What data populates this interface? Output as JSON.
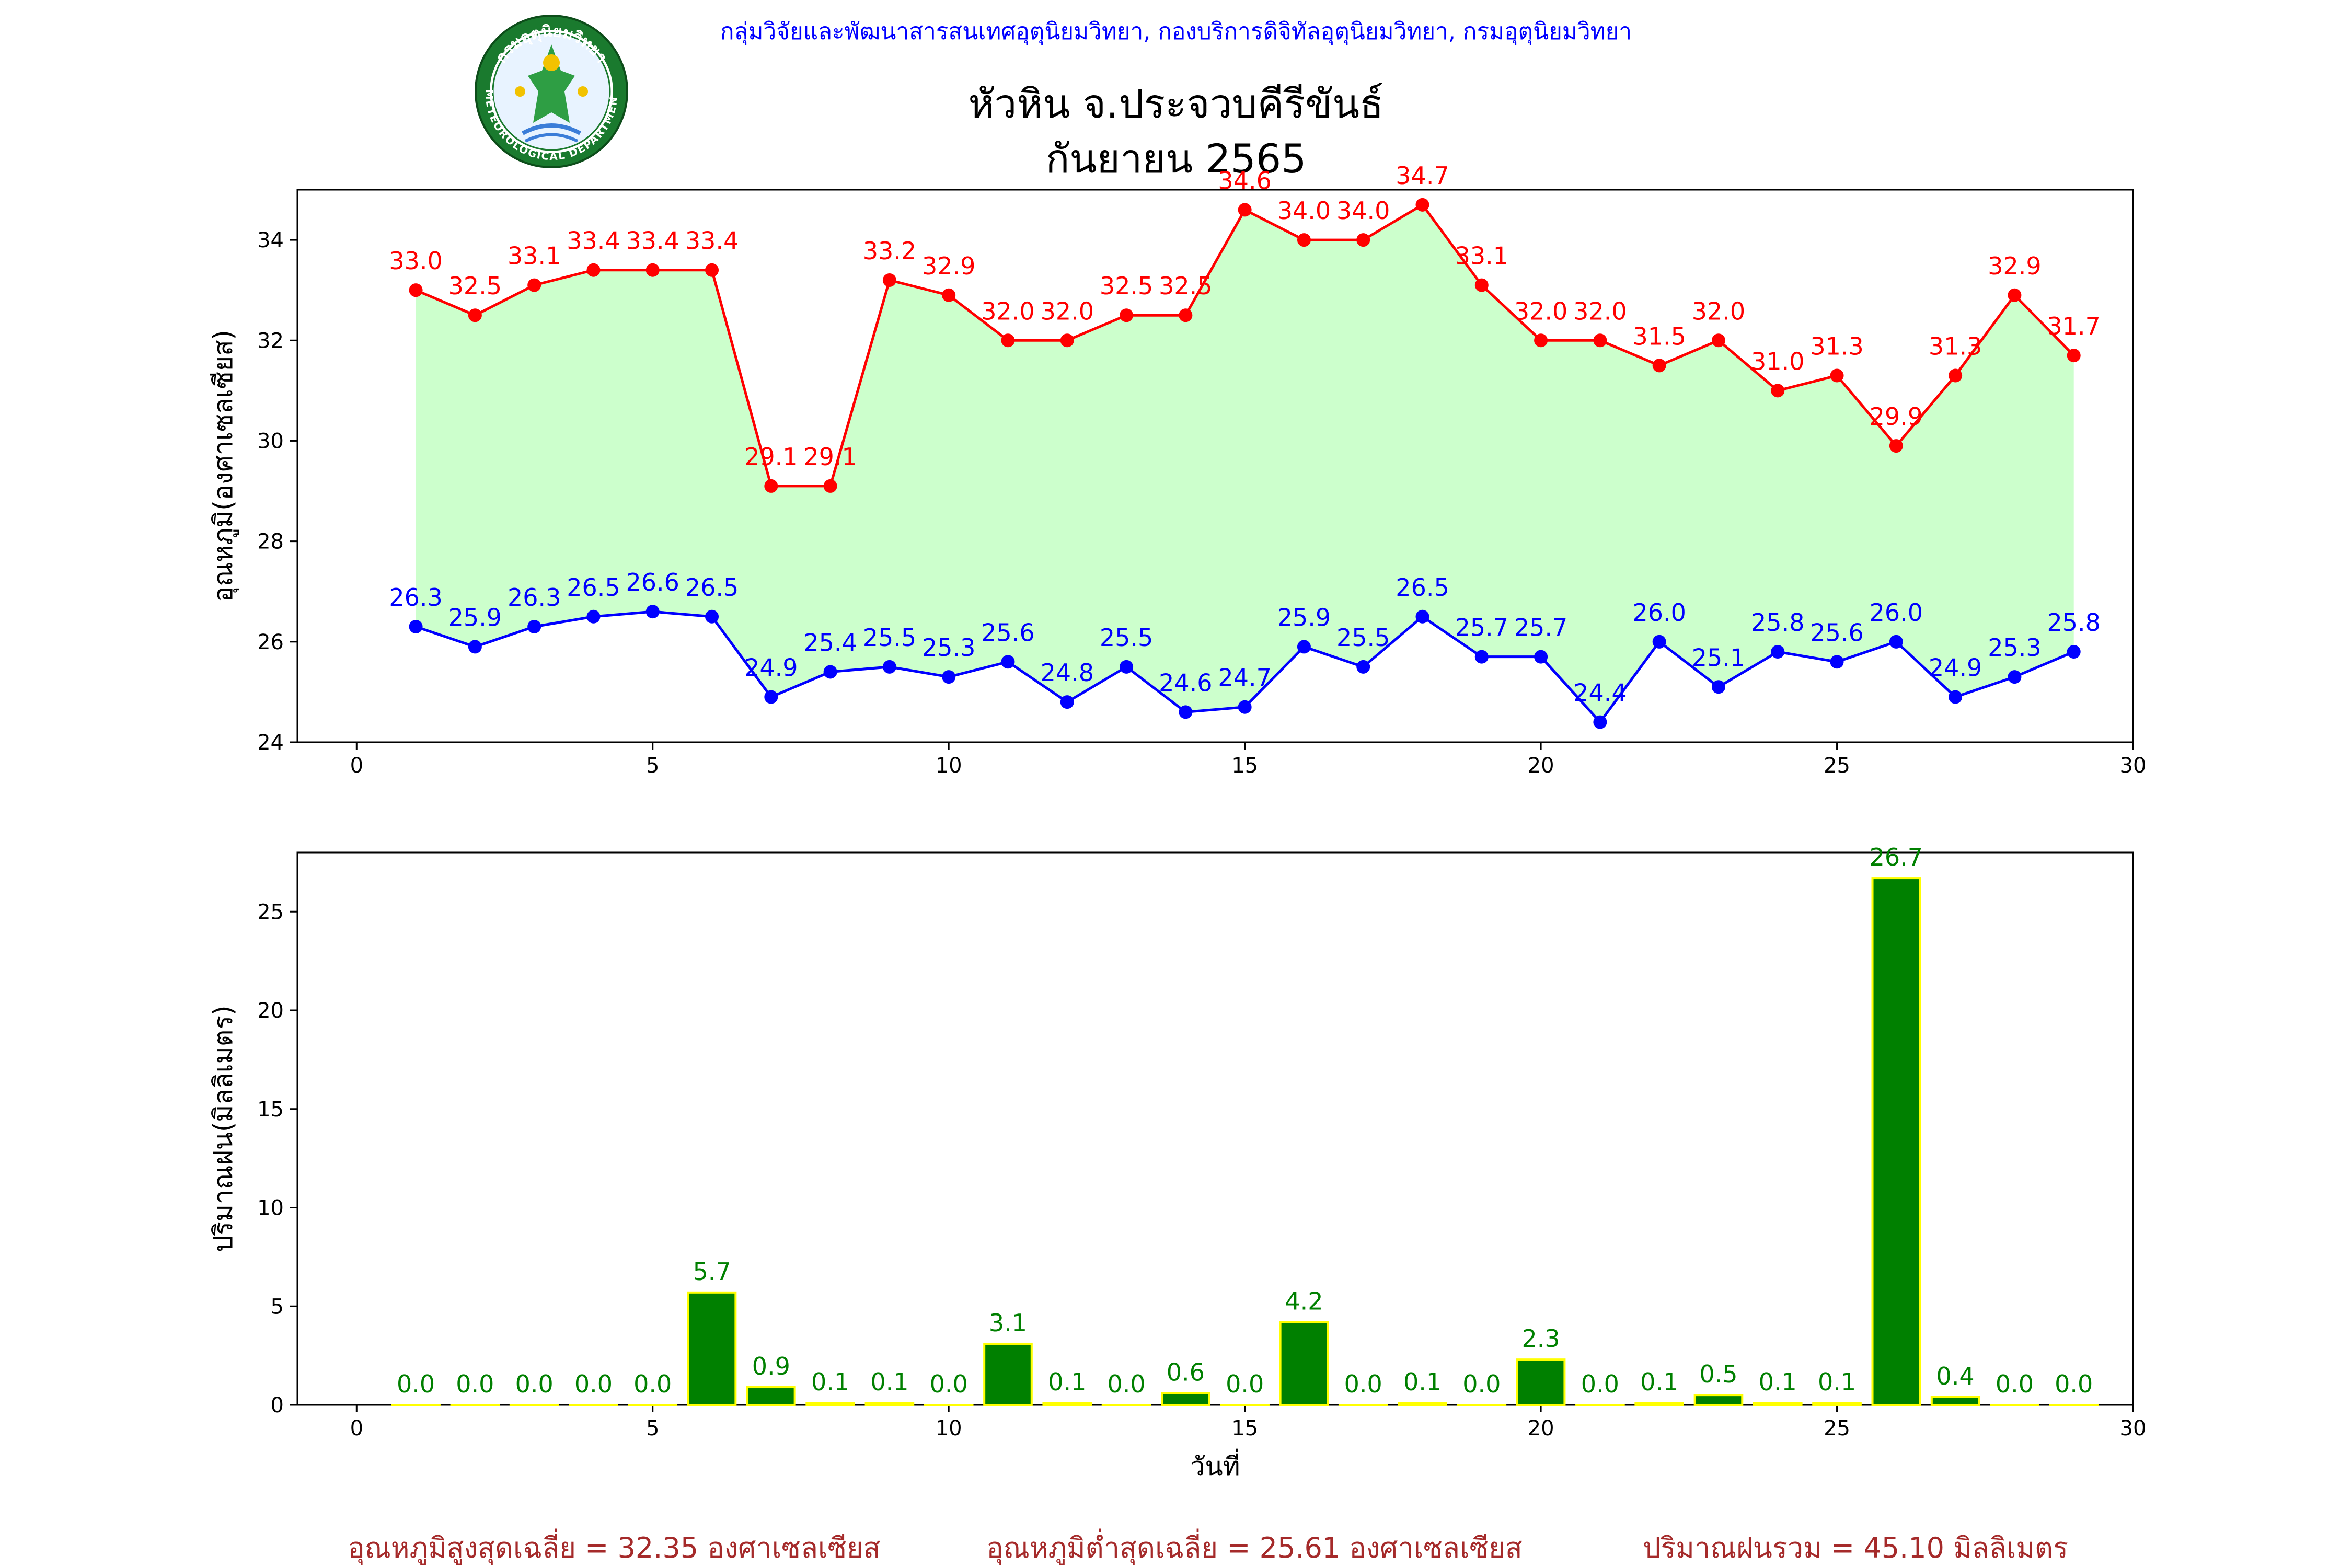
{
  "header": {
    "agency": "กลุ่มวิจัยและพัฒนาสารสนเทศอุตุนิยมวิทยา, กองบริการดิจิทัลอุตุนิยมวิทยา, กรมอุตุนิยมวิทยา",
    "title_line1": "หัวหิน จ.ประจวบคีรีขันธ์",
    "title_line2": "กันยายน 2565",
    "logo_text_top": "กรมอุตุนิยมวิทยา",
    "logo_text_bottom": "METEOROLOGICAL DEPARTMENT"
  },
  "footer": {
    "avg_max": "อุณหภูมิสูงสุดเฉลี่ย = 32.35 องศาเซลเซียส",
    "avg_min": "อุณหภูมิต่ำสุดเฉลี่ย = 25.61 องศาเซลเซียส",
    "rain_total": "ปริมาณฝนรวม = 45.10 มิลลิเมตร"
  },
  "colors": {
    "max_line": "#ff0000",
    "min_line": "#0000ff",
    "fill": "#ccffcc",
    "bar": "#008000",
    "bar_edge": "#ffff00",
    "header_text": "#0000ff",
    "footer_text": "#a52a2a"
  },
  "chart_data": [
    {
      "type": "line",
      "ylabel": "อุณหภูมิ(องศาเซลเซียส)",
      "xlim": [
        -1,
        30
      ],
      "ylim": [
        24,
        35
      ],
      "xticks": [
        0,
        5,
        10,
        15,
        20,
        25,
        30
      ],
      "yticks": [
        24,
        26,
        28,
        30,
        32,
        34
      ],
      "x": [
        1,
        2,
        3,
        4,
        5,
        6,
        7,
        8,
        9,
        10,
        11,
        12,
        13,
        14,
        15,
        16,
        17,
        18,
        19,
        20,
        21,
        22,
        23,
        24,
        25,
        26,
        27,
        28,
        29
      ],
      "series": [
        {
          "key": "max",
          "values": [
            33.0,
            32.5,
            33.1,
            33.4,
            33.4,
            33.4,
            29.1,
            29.1,
            33.2,
            32.9,
            32.0,
            32.0,
            32.5,
            32.5,
            34.6,
            34.0,
            34.0,
            34.7,
            33.1,
            32.0,
            32.0,
            31.5,
            32.0,
            31.0,
            31.3,
            29.9,
            31.3,
            32.9,
            31.7
          ]
        },
        {
          "key": "min",
          "values": [
            26.3,
            25.9,
            26.3,
            26.5,
            26.6,
            26.5,
            24.9,
            25.4,
            25.5,
            25.3,
            25.6,
            24.8,
            25.5,
            24.6,
            24.7,
            25.9,
            25.5,
            26.5,
            25.7,
            25.7,
            24.4,
            26.0,
            25.1,
            25.8,
            25.6,
            26.0,
            24.9,
            25.3,
            25.8
          ]
        }
      ],
      "fill_between": true
    },
    {
      "type": "bar",
      "xlabel": "วันที่",
      "ylabel": "ปริมาณฝน(มิลลิเมตร)",
      "xlim": [
        -1,
        30
      ],
      "ylim": [
        0,
        28
      ],
      "xticks": [
        0,
        5,
        10,
        15,
        20,
        25,
        30
      ],
      "yticks": [
        0,
        5,
        10,
        15,
        20,
        25
      ],
      "x": [
        1,
        2,
        3,
        4,
        5,
        6,
        7,
        8,
        9,
        10,
        11,
        12,
        13,
        14,
        15,
        16,
        17,
        18,
        19,
        20,
        21,
        22,
        23,
        24,
        25,
        26,
        27,
        28,
        29
      ],
      "values": [
        0.0,
        0.0,
        0.0,
        0.0,
        0.0,
        5.7,
        0.9,
        0.1,
        0.1,
        0.0,
        3.1,
        0.1,
        0.0,
        0.6,
        0.0,
        4.2,
        0.0,
        0.1,
        0.0,
        2.3,
        0.0,
        0.1,
        0.5,
        0.1,
        0.1,
        26.7,
        0.4,
        0.0,
        0.0
      ]
    }
  ]
}
